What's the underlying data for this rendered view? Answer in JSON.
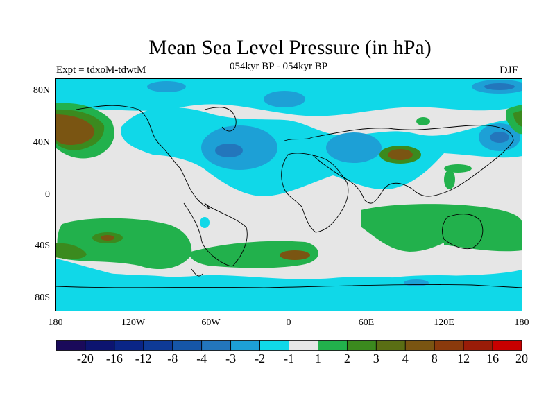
{
  "title": "Mean Sea Level Pressure (in hPa)",
  "subtitle_left": "Expt = tdxoM-tdwtM",
  "subtitle_center": "054kyr BP - 054kyr BP",
  "subtitle_right": "DJF",
  "y_axis": {
    "ticks": [
      "80N",
      "40N",
      "0",
      "40S",
      "80S"
    ]
  },
  "x_axis": {
    "ticks": [
      "180",
      "120W",
      "60W",
      "0",
      "60E",
      "120E",
      "180"
    ]
  },
  "colorbar": {
    "labels": [
      "-20",
      "-16",
      "-12",
      "-8",
      "-4",
      "-3",
      "-2",
      "-1",
      "1",
      "2",
      "3",
      "4",
      "8",
      "12",
      "16",
      "20"
    ],
    "colors": [
      "#1a0a5a",
      "#0c1470",
      "#0a2586",
      "#0e3a96",
      "#1656a8",
      "#2376bc",
      "#1da0d6",
      "#10d8e8",
      "#e6e6e6",
      "#22b14c",
      "#3b8a1e",
      "#5a6e14",
      "#7a5512",
      "#8a3a0c",
      "#9a1c08",
      "#c80000"
    ]
  },
  "map_colors": {
    "neutral": "#e6e6e6",
    "cyan": "#10d8e8",
    "light_blue": "#1da0d6",
    "mid_blue": "#2376bc",
    "green": "#22b14c",
    "dark_green": "#3b8a1e",
    "olive": "#5a6e14",
    "brown": "#7a5512"
  }
}
